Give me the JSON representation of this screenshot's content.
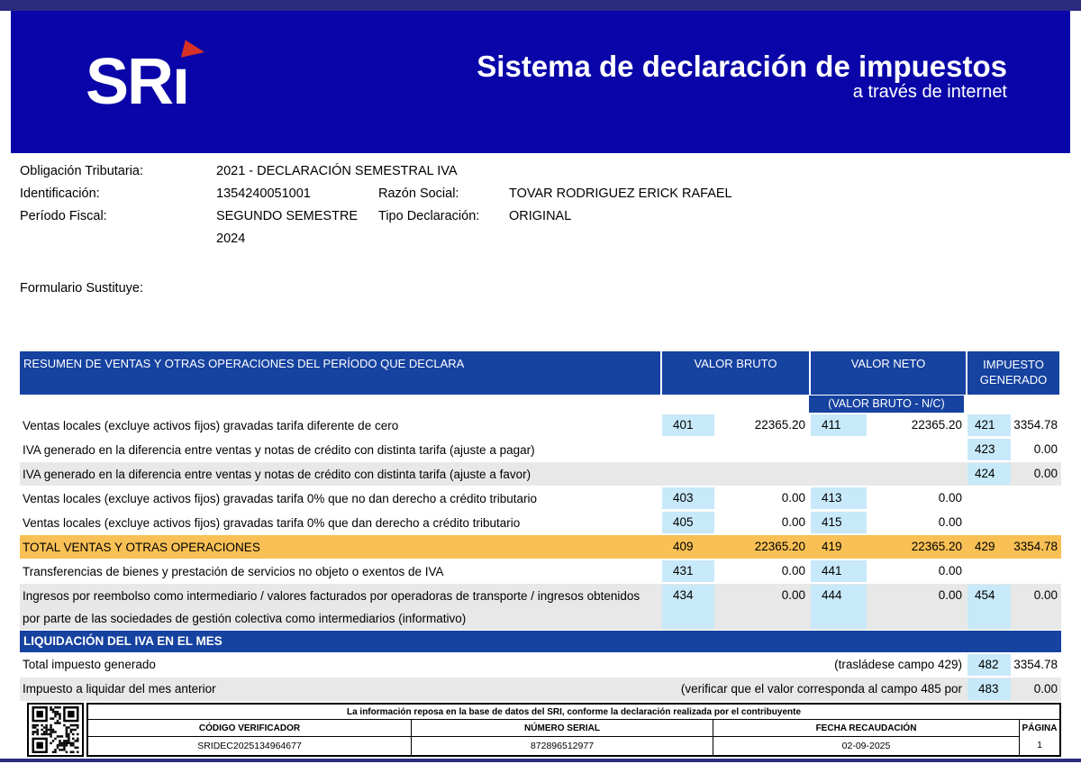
{
  "header": {
    "logo_text": "SRı",
    "title": "Sistema de declaración de impuestos",
    "subtitle": "a través de internet"
  },
  "info": {
    "obligacion_label": "Obligación Tributaria:",
    "obligacion_value": "2021 - DECLARACIÓN SEMESTRAL IVA",
    "identificacion_label": "Identificación:",
    "identificacion_value": "1354240051001",
    "razon_label": "Razón Social:",
    "razon_value": "TOVAR RODRIGUEZ ERICK RAFAEL",
    "periodo_label": "Período Fiscal:",
    "periodo_value": "SEGUNDO SEMESTRE 2024",
    "tipo_label": "Tipo Declaración:",
    "tipo_value": "ORIGINAL",
    "formulario_label": "Formulario Sustituye:",
    "formulario_value": ""
  },
  "sales_table": {
    "title": "RESUMEN DE VENTAS Y OTRAS OPERACIONES DEL PERÍODO QUE DECLARA",
    "col_valor_bruto": "VALOR BRUTO",
    "col_valor_neto": "VALOR NETO",
    "col_valor_neto_sub": "(VALOR BRUTO - N/C)",
    "col_impuesto": "IMPUESTO GENERADO",
    "rows": [
      {
        "desc": "Ventas locales (excluye activos fijos) gravadas tarifa diferente de cero",
        "shade": "white",
        "vb_code": "401",
        "vb_value": "22365.20",
        "vn_code": "411",
        "vn_value": "22365.20",
        "ig_code": "421",
        "ig_value": "3354.78"
      },
      {
        "desc": "IVA generado en la diferencia entre ventas y notas de crédito con distinta tarifa (ajuste a pagar)",
        "shade": "white",
        "vb_code": "",
        "vb_value": "",
        "vn_code": "",
        "vn_value": "",
        "ig_code": "423",
        "ig_value": "0.00"
      },
      {
        "desc": "IVA generado en la diferencia entre ventas y notas de crédito con distinta tarifa (ajuste a favor)",
        "shade": "gray",
        "vb_code": "",
        "vb_value": "",
        "vn_code": "",
        "vn_value": "",
        "ig_code": "424",
        "ig_value": "0.00"
      },
      {
        "desc": "Ventas locales (excluye activos fijos) gravadas tarifa 0% que no dan derecho a crédito tributario",
        "shade": "white",
        "vb_code": "403",
        "vb_value": "0.00",
        "vn_code": "413",
        "vn_value": "0.00",
        "ig_code": "",
        "ig_value": ""
      },
      {
        "desc": "Ventas locales (excluye activos fijos) gravadas tarifa 0% que dan derecho a crédito tributario",
        "shade": "white",
        "vb_code": "405",
        "vb_value": "0.00",
        "vn_code": "415",
        "vn_value": "0.00",
        "ig_code": "",
        "ig_value": ""
      },
      {
        "desc": "TOTAL VENTAS Y OTRAS OPERACIONES",
        "shade": "orange",
        "vb_code": "409",
        "vb_value": "22365.20",
        "vn_code": "419",
        "vn_value": "22365.20",
        "ig_code": "429",
        "ig_value": "3354.78"
      },
      {
        "desc": "Transferencias de bienes y prestación de servicios no objeto o exentos de IVA",
        "shade": "white",
        "vb_code": "431",
        "vb_value": "0.00",
        "vn_code": "441",
        "vn_value": "0.00",
        "ig_code": "",
        "ig_value": ""
      },
      {
        "desc": "Ingresos por reembolso como intermediario / valores facturados por operadoras de transporte / ingresos obtenidos por parte de las sociedades de gestión colectiva como intermediarios (informativo)",
        "shade": "gray",
        "vb_code": "434",
        "vb_value": "0.00",
        "vn_code": "444",
        "vn_value": "0.00",
        "ig_code": "454",
        "ig_value": "0.00"
      }
    ]
  },
  "liquidacion": {
    "title": "LIQUIDACIÓN DEL IVA EN EL MES",
    "rows": [
      {
        "desc": "Total impuesto generado",
        "note": "(trasládese campo 429)",
        "code": "482",
        "value": "3354.78",
        "shade": "white"
      },
      {
        "desc": "Impuesto a liquidar del mes anterior",
        "note": "(verificar que el valor corresponda al campo 485 por",
        "code": "483",
        "value": "0.00",
        "shade": "gray"
      }
    ]
  },
  "footer": {
    "disclaimer": "La información reposa en la base de datos del SRI, conforme la declaración realizada por el contribuyente",
    "columns": [
      "CÓDIGO VERIFICADOR",
      "NÚMERO SERIAL",
      "FECHA RECAUDACIÓN",
      "PÁGINA"
    ],
    "values": [
      "SRIDEC2025134964677",
      "872896512977",
      "02-09-2025",
      "1"
    ]
  },
  "colors": {
    "strip_navy": "#2b2b80",
    "masthead_blue": "#0a05a8",
    "section_header_blue": "#1642a0",
    "code_cell_blue": "#c8e9f9",
    "total_row_orange": "#f9c055",
    "shaded_row_gray": "#e8e8e8",
    "logo_flag_red": "#d83228"
  }
}
